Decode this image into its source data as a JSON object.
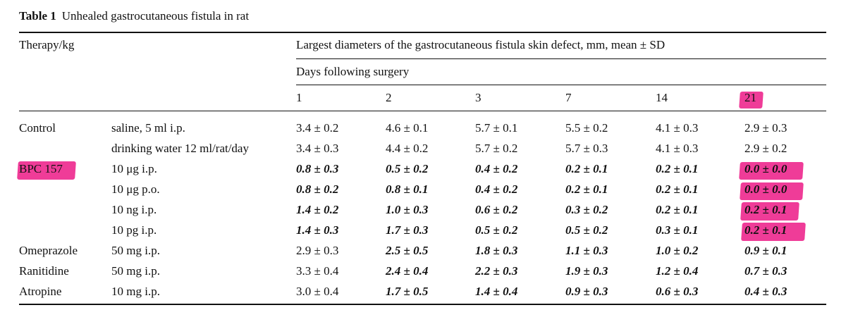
{
  "caption": {
    "label": "Table 1",
    "title": "Unhealed gastrocutaneous fistula in rat"
  },
  "header": {
    "therapy": "Therapy/kg",
    "measure": "Largest diameters of the gastrocutaneous fistula skin defect, mm, mean ± SD",
    "days_label": "Days following surgery",
    "days": [
      "1",
      "2",
      "3",
      "7",
      "14",
      "21"
    ]
  },
  "rows": [
    {
      "group": "Control",
      "dose": "saline, 5 ml i.p.",
      "values": [
        "3.4 ± 0.2",
        "4.6 ± 0.1",
        "5.7 ± 0.1",
        "5.5 ± 0.2",
        "4.1 ± 0.3",
        "2.9 ± 0.3"
      ],
      "bold": [
        false,
        false,
        false,
        false,
        false,
        false
      ]
    },
    {
      "group": "",
      "dose": "drinking water 12 ml/rat/day",
      "values": [
        "3.4 ± 0.3",
        "4.4 ± 0.2",
        "5.7 ± 0.2",
        "5.7 ± 0.3",
        "4.1 ± 0.3",
        "2.9 ± 0.2"
      ],
      "bold": [
        false,
        false,
        false,
        false,
        false,
        false
      ]
    },
    {
      "group": "BPC 157",
      "dose": "10 μg i.p.",
      "values": [
        "0.8 ± 0.3",
        "0.5 ± 0.2",
        "0.4 ± 0.2",
        "0.2 ± 0.1",
        "0.2 ± 0.1",
        "0.0 ± 0.0"
      ],
      "bold": [
        true,
        true,
        true,
        true,
        true,
        true
      ]
    },
    {
      "group": "",
      "dose": "10 μg p.o.",
      "values": [
        "0.8 ± 0.2",
        "0.8 ± 0.1",
        "0.4 ± 0.2",
        "0.2 ± 0.1",
        "0.2 ± 0.1",
        "0.0 ± 0.0"
      ],
      "bold": [
        true,
        true,
        true,
        true,
        true,
        true
      ]
    },
    {
      "group": "",
      "dose": "10 ng i.p.",
      "values": [
        "1.4 ± 0.2",
        "1.0 ± 0.3",
        "0.6 ± 0.2",
        "0.3 ± 0.2",
        "0.2 ± 0.1",
        "0.2 ± 0.1"
      ],
      "bold": [
        true,
        true,
        true,
        true,
        true,
        true
      ]
    },
    {
      "group": "",
      "dose": "10 pg i.p.",
      "values": [
        "1.4 ± 0.3",
        "1.7 ± 0.3",
        "0.5 ± 0.2",
        "0.5 ± 0.2",
        "0.3 ± 0.1",
        "0.2 ± 0.1"
      ],
      "bold": [
        true,
        true,
        true,
        true,
        true,
        true
      ]
    },
    {
      "group": "Omeprazole",
      "dose": "50 mg i.p.",
      "values": [
        "2.9 ± 0.3",
        "2.5 ± 0.5",
        "1.8 ± 0.3",
        "1.1 ± 0.3",
        "1.0 ± 0.2",
        "0.9 ± 0.1"
      ],
      "bold": [
        false,
        true,
        true,
        true,
        true,
        true
      ]
    },
    {
      "group": "Ranitidine",
      "dose": "50 mg i.p.",
      "values": [
        "3.3 ± 0.4",
        "2.4 ± 0.4",
        "2.2 ± 0.3",
        "1.9 ± 0.3",
        "1.2 ± 0.4",
        "0.7 ± 0.3"
      ],
      "bold": [
        false,
        true,
        true,
        true,
        true,
        true
      ]
    },
    {
      "group": "Atropine",
      "dose": "10 mg i.p.",
      "values": [
        "3.0 ± 0.4",
        "1.7 ± 0.5",
        "1.4 ± 0.4",
        "0.9 ± 0.3",
        "0.6 ± 0.3",
        "0.4 ± 0.3"
      ],
      "bold": [
        false,
        true,
        true,
        true,
        true,
        true
      ]
    }
  ],
  "highlight_color": "#ec1a86"
}
